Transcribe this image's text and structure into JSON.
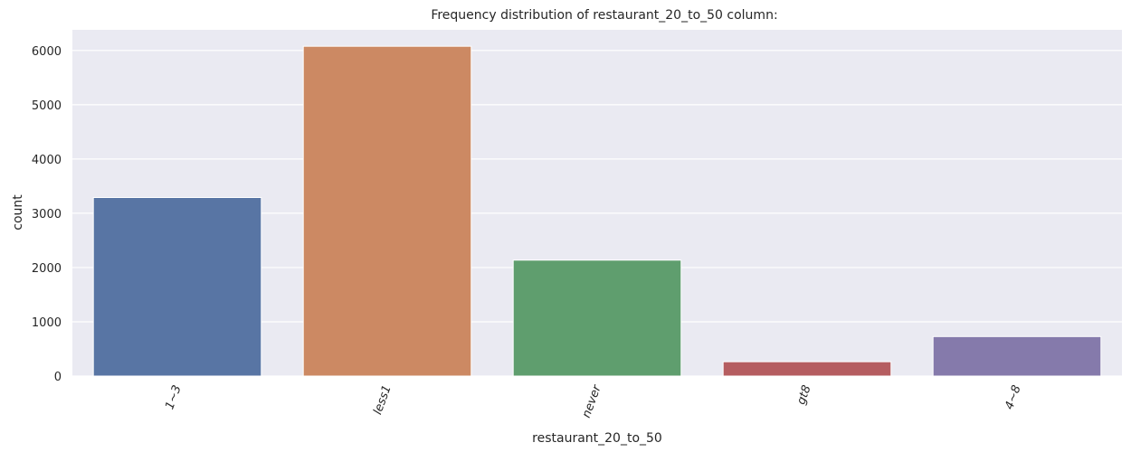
{
  "chart_data": {
    "type": "bar",
    "title": "Frequency distribution of restaurant_20_to_50 column:",
    "xlabel": "restaurant_20_to_50",
    "ylabel": "count",
    "categories": [
      "1~3",
      "less1",
      "never",
      "gt8",
      "4~8"
    ],
    "values": [
      3290,
      6077,
      2136,
      264,
      728
    ],
    "ylim": [
      0,
      6380
    ],
    "yticks": [
      0,
      1000,
      2000,
      3000,
      4000,
      5000,
      6000
    ],
    "grid": true,
    "legend": "none",
    "bar_colors": [
      "#5875a4",
      "#cc8963",
      "#5f9e6e",
      "#b55d60",
      "#857aab"
    ],
    "background_color": "#eaeaf2",
    "grid_color": "#ffffff",
    "x_tick_rotation_deg": -70
  }
}
